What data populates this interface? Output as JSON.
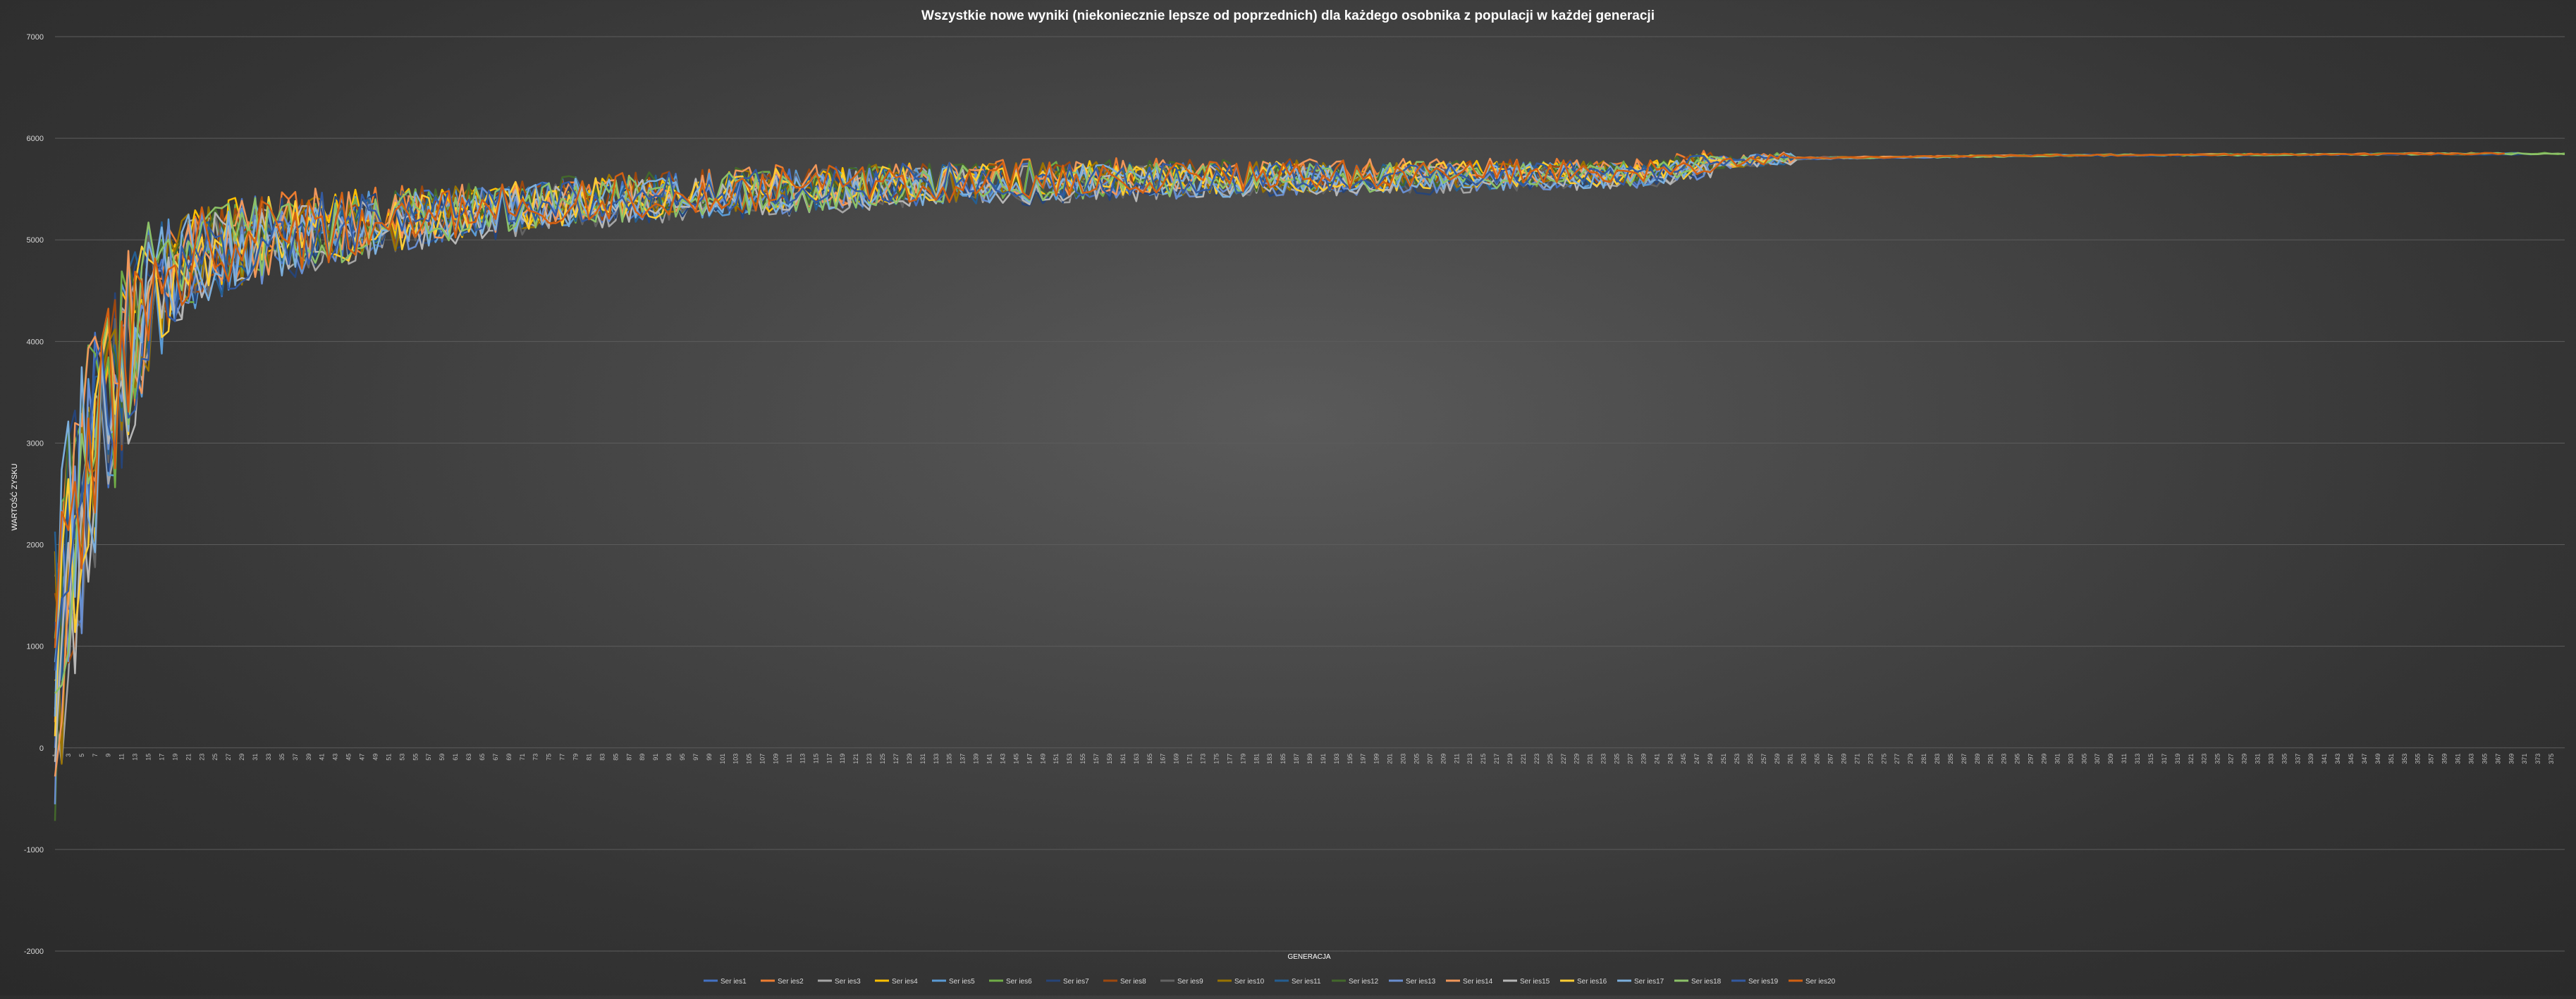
{
  "chart_data": {
    "type": "line",
    "title": "Wszystkie  nowe  wyniki  (niekoniecznie  lepsze  od  poprzednich)  dla  każdego  osobnika  z  populacji  w  każdej  generacji",
    "xlabel": "GENERACJA",
    "ylabel": "WARTOŚĆ ZYSKU",
    "ylim": [
      -2000,
      7000
    ],
    "yticks": [
      -2000,
      -1000,
      0,
      1000,
      2000,
      3000,
      4000,
      5000,
      6000,
      7000
    ],
    "grid": true,
    "legend_position": "bottom",
    "x_range": [
      1,
      377
    ],
    "x_tick_labels_from": 1,
    "x_tick_labels_to": 375,
    "x_tick_step": 2,
    "series": [
      {
        "name": "Ser ies1",
        "color": "#4472c4",
        "end_gen": 370,
        "offset": 0
      },
      {
        "name": "Ser ies2",
        "color": "#ed7d31",
        "end_gen": 366,
        "offset": 40
      },
      {
        "name": "Ser ies3",
        "color": "#a5a5a5",
        "end_gen": 250,
        "offset": -30
      },
      {
        "name": "Ser ies4",
        "color": "#ffc000",
        "end_gen": 300,
        "offset": 20
      },
      {
        "name": "Ser ies5",
        "color": "#5b9bd5",
        "end_gen": 280,
        "offset": -10
      },
      {
        "name": "Ser ies6",
        "color": "#70ad47",
        "end_gen": 377,
        "offset": 10
      },
      {
        "name": "Ser ies7",
        "color": "#264478",
        "end_gen": 372,
        "offset": -40
      },
      {
        "name": "Ser ies8",
        "color": "#9e480e",
        "end_gen": 290,
        "offset": 30
      },
      {
        "name": "Ser ies9",
        "color": "#636363",
        "end_gen": 270,
        "offset": -20
      },
      {
        "name": "Ser ies10",
        "color": "#997300",
        "end_gen": 260,
        "offset": 15
      },
      {
        "name": "Ser ies11",
        "color": "#255e91",
        "end_gen": 275,
        "offset": -5
      },
      {
        "name": "Ser ies12",
        "color": "#43682b",
        "end_gen": 255,
        "offset": 25
      },
      {
        "name": "Ser ies13",
        "color": "#698ed0",
        "end_gen": 285,
        "offset": -25
      },
      {
        "name": "Ser ies14",
        "color": "#f1975a",
        "end_gen": 295,
        "offset": 35
      },
      {
        "name": "Ser ies15",
        "color": "#b7b7b7",
        "end_gen": 265,
        "offset": -35
      },
      {
        "name": "Ser ies16",
        "color": "#ffcd33",
        "end_gen": 258,
        "offset": 5
      },
      {
        "name": "Ser ies17",
        "color": "#7cafdd",
        "end_gen": 262,
        "offset": -15
      },
      {
        "name": "Ser ies18",
        "color": "#8cc168",
        "end_gen": 377,
        "offset": 0
      },
      {
        "name": "Ser ies19",
        "color": "#335aa1",
        "end_gen": 268,
        "offset": 12
      },
      {
        "name": "Ser ies20",
        "color": "#d26012",
        "end_gen": 368,
        "offset": 20
      }
    ],
    "profile": {
      "description_points_gen": [
        1,
        3,
        6,
        10,
        15,
        20,
        30,
        40,
        60,
        80,
        100,
        130,
        160,
        200,
        240,
        250,
        260,
        300,
        377
      ],
      "description_points_value": [
        800,
        1800,
        2800,
        3600,
        4400,
        4750,
        5000,
        5100,
        5250,
        5380,
        5450,
        5540,
        5590,
        5620,
        5650,
        5760,
        5800,
        5830,
        5850
      ]
    }
  }
}
